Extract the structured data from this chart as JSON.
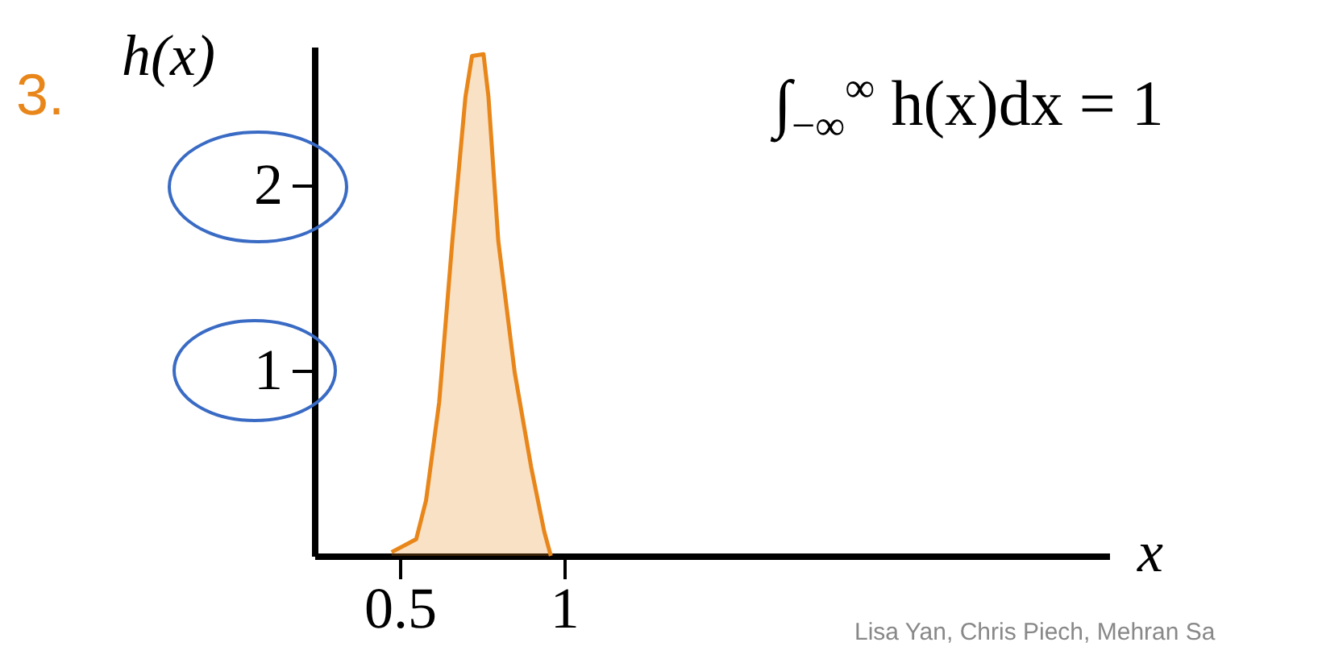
{
  "chart_data": {
    "type": "area",
    "title": "3.",
    "xlabel": "x",
    "ylabel": "h(x)",
    "x": [
      0.475,
      0.55,
      0.58,
      0.62,
      0.66,
      0.7,
      0.72,
      0.755,
      0.77,
      0.8,
      0.85,
      0.9,
      0.94,
      0.96
    ],
    "series": [
      {
        "color": "#e8861a",
        "values": [
          0.02,
          0.09,
          0.3,
          0.83,
          1.7,
          2.48,
          2.7,
          2.71,
          2.48,
          1.7,
          0.99,
          0.48,
          0.13,
          0
        ]
      }
    ],
    "xlim": [
      0.24,
      2.66
    ],
    "xticks": [
      0.5,
      1
    ],
    "ylim": [
      0,
      2.75
    ],
    "yticks": [
      1,
      2
    ],
    "grid": false,
    "annotations": [
      "∫$_{−∞}$$^{∞}$ h(x)dx = 1",
      "Lisa Yan, Chris Piech, Mehran Sa"
    ]
  }
}
